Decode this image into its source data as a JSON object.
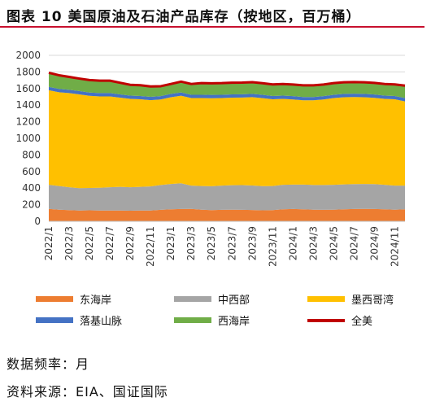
{
  "title": "图表 10  美国原油及石油产品库存（按地区，百万桶）",
  "chart_data": {
    "type": "area",
    "stacked": true,
    "ylim": [
      0,
      2000
    ],
    "ystep": 200,
    "categories": [
      "2022/1",
      "2022/2",
      "2022/3",
      "2022/4",
      "2022/5",
      "2022/6",
      "2022/7",
      "2022/8",
      "2022/9",
      "2022/10",
      "2022/11",
      "2022/12",
      "2023/1",
      "2023/2",
      "2023/3",
      "2023/4",
      "2023/5",
      "2023/6",
      "2023/7",
      "2023/8",
      "2023/9",
      "2023/10",
      "2023/11",
      "2023/12",
      "2024/1",
      "2024/2",
      "2024/3",
      "2024/4",
      "2024/5",
      "2024/6",
      "2024/7",
      "2024/8",
      "2024/9",
      "2024/10",
      "2024/11",
      "2024/12"
    ],
    "xticks": [
      "2022/1",
      "2022/3",
      "2022/5",
      "2022/7",
      "2022/9",
      "2022/11",
      "2023/1",
      "2023/3",
      "2023/5",
      "2023/7",
      "2023/9",
      "2023/11",
      "2024/1",
      "2024/3",
      "2024/5",
      "2024/7",
      "2024/9",
      "2024/11"
    ],
    "series": [
      {
        "name": "东海岸",
        "color": "#ed7d31",
        "values": [
          150,
          140,
          135,
          130,
          132,
          130,
          130,
          130,
          128,
          130,
          130,
          138,
          145,
          148,
          150,
          140,
          135,
          138,
          140,
          138,
          136,
          132,
          135,
          145,
          148,
          145,
          140,
          138,
          140,
          145,
          148,
          150,
          148,
          145,
          140,
          145
        ]
      },
      {
        "name": "中西部",
        "color": "#a5a5a5",
        "values": [
          290,
          285,
          275,
          270,
          270,
          275,
          280,
          285,
          282,
          285,
          290,
          300,
          305,
          310,
          280,
          285,
          288,
          292,
          295,
          298,
          295,
          292,
          290,
          295,
          295,
          298,
          298,
          300,
          300,
          300,
          300,
          300,
          300,
          295,
          290,
          285
        ]
      },
      {
        "name": "墨西哥湾",
        "color": "#ffc000",
        "values": [
          1140,
          1130,
          1135,
          1130,
          1110,
          1100,
          1095,
          1075,
          1065,
          1055,
          1040,
          1030,
          1045,
          1055,
          1055,
          1060,
          1060,
          1055,
          1055,
          1055,
          1065,
          1060,
          1045,
          1035,
          1025,
          1015,
          1020,
          1030,
          1045,
          1050,
          1050,
          1045,
          1040,
          1035,
          1040,
          1015
        ]
      },
      {
        "name": "落基山脉",
        "color": "#4472c4",
        "values": [
          40,
          40,
          40,
          40,
          40,
          40,
          40,
          40,
          40,
          40,
          40,
          40,
          40,
          40,
          40,
          40,
          40,
          40,
          40,
          40,
          40,
          40,
          40,
          40,
          40,
          40,
          40,
          40,
          40,
          40,
          40,
          40,
          40,
          40,
          40,
          40
        ]
      },
      {
        "name": "西海岸",
        "color": "#70ad47",
        "values": [
          170,
          165,
          155,
          150,
          150,
          150,
          150,
          140,
          130,
          130,
          125,
          120,
          120,
          130,
          130,
          140,
          140,
          140,
          140,
          140,
          140,
          140,
          140,
          140,
          140,
          140,
          140,
          140,
          140,
          140,
          140,
          140,
          140,
          140,
          140,
          150
        ]
      }
    ],
    "total": {
      "name": "全美",
      "color": "#c00000",
      "values": [
        1790,
        1760,
        1740,
        1720,
        1702,
        1695,
        1695,
        1670,
        1645,
        1640,
        1625,
        1628,
        1655,
        1683,
        1655,
        1665,
        1663,
        1665,
        1670,
        1671,
        1676,
        1664,
        1650,
        1655,
        1648,
        1638,
        1638,
        1648,
        1665,
        1675,
        1678,
        1675,
        1668,
        1655,
        1650,
        1635
      ]
    }
  },
  "legend": [
    "东海岸",
    "中西部",
    "墨西哥湾",
    "落基山脉",
    "西海岸",
    "全美"
  ],
  "footer": {
    "frequency": "数据频率：月",
    "source": "资料来源：EIA、国证国际"
  }
}
